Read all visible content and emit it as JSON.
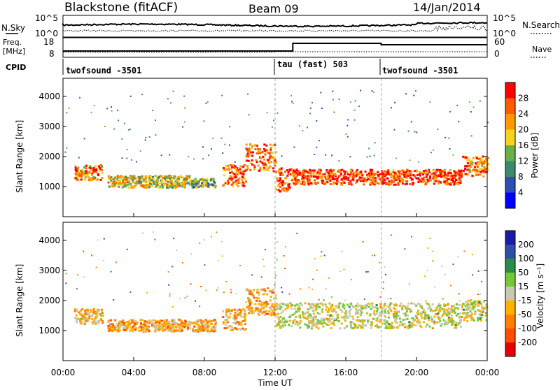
{
  "header": {
    "station": "Blackstone (fitACF)",
    "beam": "Beam 09",
    "date": "14/Jan/2014"
  },
  "top_panels": {
    "nsky_label": "N.Sky",
    "nsearch_label": "N.Search",
    "noise_ticks": [
      "10^5",
      "10^0"
    ],
    "freq_label_line1": "Freq.",
    "freq_label_line2": "[MHz]",
    "freq_ticks": [
      "18",
      "8"
    ],
    "nave_label": "Nave",
    "nave_ticks": [
      "60",
      "0"
    ],
    "cpid_label": "CPID",
    "cpid_segments": [
      {
        "name": "twofsound -3501",
        "start_hour": 0
      },
      {
        "name": "tau (fast) 503",
        "start_hour": 12.0
      },
      {
        "name": "twofsound -3501",
        "start_hour": 18.0
      }
    ]
  },
  "x_axis": {
    "label": "Time UT",
    "ticks": [
      "00:00",
      "04:00",
      "08:00",
      "12:00",
      "16:00",
      "20:00",
      "00:00"
    ]
  },
  "colors": {
    "power_scale": [
      "#0000ff",
      "#2d4fb2",
      "#3c8a6e",
      "#69b04a",
      "#f5d31f",
      "#ff9900",
      "#ff5a00",
      "#ff0000"
    ],
    "velocity_scale": [
      "#1a1aa6",
      "#2e4fa8",
      "#2c8a4a",
      "#73c837",
      "#c8c8b4",
      "#ffb000",
      "#ff8000",
      "#ff4d00",
      "#e60000"
    ]
  },
  "chart_data": [
    {
      "type": "heatmap",
      "panel": "power",
      "xlabel": "",
      "ylabel": "Slant Range [km]",
      "xlim": [
        0,
        24
      ],
      "ylim": [
        0,
        4600
      ],
      "yticks": [
        1000,
        2000,
        3000,
        4000
      ],
      "colorbar": {
        "label": "Power [dB]",
        "ticks": [
          "4",
          "8",
          "12",
          "16",
          "20",
          "24",
          "28"
        ],
        "range": [
          0,
          30
        ]
      },
      "regions": [
        {
          "t0": 0.6,
          "t1": 2.2,
          "r0": 1200,
          "r1": 1700,
          "value": 22
        },
        {
          "t0": 2.5,
          "t1": 7.2,
          "r0": 950,
          "r1": 1350,
          "value": 16
        },
        {
          "t0": 7.2,
          "t1": 8.6,
          "r0": 950,
          "r1": 1250,
          "value": 14
        },
        {
          "t0": 9.0,
          "t1": 10.3,
          "r0": 1000,
          "r1": 1700,
          "value": 24
        },
        {
          "t0": 10.3,
          "t1": 12.0,
          "r0": 1500,
          "r1": 2400,
          "value": 24
        },
        {
          "t0": 12.0,
          "t1": 12.9,
          "r0": 800,
          "r1": 1600,
          "value": 26
        },
        {
          "t0": 12.9,
          "t1": 22.5,
          "r0": 1050,
          "r1": 1550,
          "value": 26
        },
        {
          "t0": 22.5,
          "t1": 24.0,
          "r0": 1300,
          "r1": 2000,
          "value": 22
        }
      ]
    },
    {
      "type": "heatmap",
      "panel": "velocity",
      "xlabel": "Time UT",
      "ylabel": "Slant Range [km]",
      "xlim": [
        0,
        24
      ],
      "ylim": [
        0,
        4600
      ],
      "yticks": [
        1000,
        2000,
        3000,
        4000
      ],
      "colorbar": {
        "label": "Velocity [m s⁻¹]",
        "ticks": [
          "200",
          "100",
          "50",
          "15",
          "-15",
          "-50",
          "-100",
          "-200"
        ],
        "range": [
          -200,
          200
        ]
      },
      "regions": [
        {
          "t0": 0.6,
          "t1": 2.2,
          "r0": 1200,
          "r1": 1700,
          "value": -40
        },
        {
          "t0": 2.5,
          "t1": 8.6,
          "r0": 950,
          "r1": 1350,
          "value": -60
        },
        {
          "t0": 9.0,
          "t1": 10.3,
          "r0": 1000,
          "r1": 1700,
          "value": -60
        },
        {
          "t0": 10.3,
          "t1": 12.0,
          "r0": 1500,
          "r1": 2400,
          "value": -60
        },
        {
          "t0": 12.0,
          "t1": 22.5,
          "r0": 1050,
          "r1": 1900,
          "value": 0
        },
        {
          "t0": 22.5,
          "t1": 24.0,
          "r0": 1300,
          "r1": 2000,
          "value": 0
        }
      ]
    }
  ]
}
